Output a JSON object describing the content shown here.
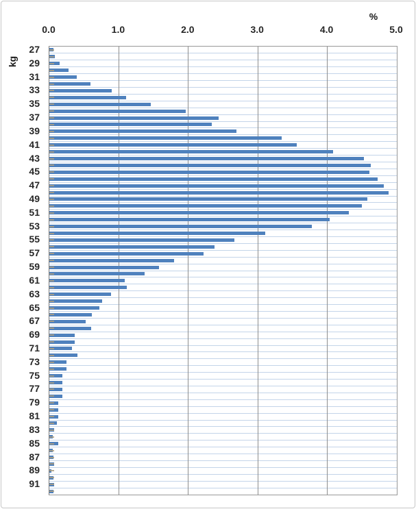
{
  "chart_data": {
    "type": "bar",
    "orientation": "horizontal",
    "title": "",
    "xlabel": "%",
    "ylabel": "kg",
    "xlim": [
      0,
      5
    ],
    "x_tick_labels": [
      "0.0",
      "1.0",
      "2.0",
      "3.0",
      "4.0",
      "5.0"
    ],
    "x_axis_position": "top",
    "grid": "both",
    "legend": "none",
    "bar_color": "#4F81BD",
    "h_grid_color": "#c3d4e9",
    "v_grid_color": "#8e8e8e",
    "categories": [
      27,
      28,
      29,
      30,
      31,
      32,
      33,
      34,
      35,
      36,
      37,
      38,
      39,
      40,
      41,
      42,
      43,
      44,
      45,
      46,
      47,
      48,
      49,
      50,
      51,
      52,
      53,
      54,
      55,
      56,
      57,
      58,
      59,
      60,
      61,
      62,
      63,
      64,
      65,
      66,
      67,
      68,
      69,
      70,
      71,
      72,
      73,
      74,
      75,
      76,
      77,
      78,
      79,
      80,
      81,
      82,
      83,
      84,
      85,
      86,
      87,
      88,
      89,
      90,
      91,
      92
    ],
    "y_tick_labels_shown": [
      "27",
      "29",
      "31",
      "33",
      "35",
      "37",
      "39",
      "41",
      "43",
      "45",
      "47",
      "49",
      "51",
      "53",
      "55",
      "57",
      "59",
      "61",
      "63",
      "65",
      "67",
      "69",
      "71",
      "73",
      "75",
      "77",
      "79",
      "81",
      "83",
      "85",
      "87",
      "89",
      "91"
    ],
    "values": [
      0.06,
      0.08,
      0.15,
      0.28,
      0.39,
      0.59,
      0.9,
      1.1,
      1.46,
      1.96,
      2.44,
      2.34,
      2.69,
      3.34,
      3.56,
      4.08,
      4.53,
      4.63,
      4.61,
      4.72,
      4.81,
      4.88,
      4.58,
      4.5,
      4.31,
      4.03,
      3.78,
      3.11,
      2.66,
      2.38,
      2.22,
      1.79,
      1.58,
      1.37,
      1.08,
      1.11,
      0.89,
      0.76,
      0.72,
      0.61,
      0.52,
      0.6,
      0.36,
      0.36,
      0.33,
      0.4,
      0.25,
      0.25,
      0.19,
      0.19,
      0.19,
      0.19,
      0.13,
      0.13,
      0.13,
      0.11,
      0.07,
      0.05,
      0.13,
      0.05,
      0.06,
      0.07,
      0.03,
      0.06,
      0.07,
      0.06
    ]
  }
}
